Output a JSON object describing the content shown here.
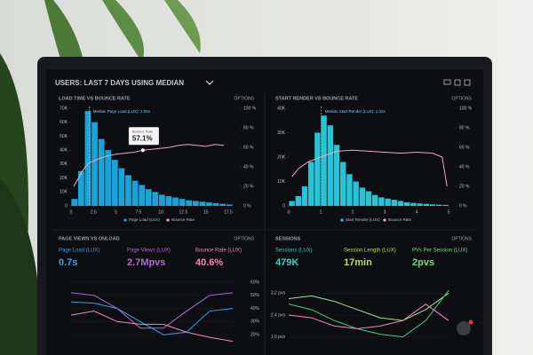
{
  "header": {
    "title": "USERS: LAST 7 DAYS USING MEDIAN"
  },
  "charts": [
    {
      "type": "histogram",
      "title": "LOAD TIME VS BOUNCE RATE",
      "options": "OPTIONS",
      "annotation": "Median Page Load (LUX): 2.05s",
      "median": 2.05,
      "bins": [
        0,
        0.75,
        1.5,
        2.25,
        3,
        3.75,
        4.5,
        5.25,
        6,
        6.75,
        7.5,
        8.25,
        9,
        9.75,
        10.5,
        11.25,
        12,
        12.75,
        13.5,
        14.25,
        15,
        15.75,
        16.5,
        17.25,
        18
      ],
      "counts": [
        5000,
        25000,
        68000,
        60000,
        48000,
        40000,
        33000,
        27000,
        22000,
        18000,
        15000,
        12000,
        10000,
        8000,
        7000,
        6000,
        5000,
        4000,
        3500,
        3000,
        2500,
        2000,
        1500,
        1000
      ],
      "color": "#1aa3d9",
      "line": {
        "color": "#e9a8c9",
        "x": [
          0.3,
          0.8,
          1.2,
          1.6,
          2,
          3,
          4,
          5,
          6,
          7,
          8,
          9,
          10,
          11,
          12,
          13,
          14,
          15,
          16,
          17
        ],
        "values": [
          20,
          28,
          35,
          40,
          44,
          48,
          51,
          53,
          54,
          55,
          57.1,
          58,
          59,
          60,
          62,
          63,
          62,
          61,
          63,
          62
        ]
      },
      "tooltip": {
        "label": "Bounce Rate",
        "x": 8,
        "value": 57.1,
        "value_label": "57.1%"
      },
      "legend": [
        "Page Load (LUX)",
        "Bounce Rate"
      ],
      "xlim": [
        0,
        18
      ],
      "xticks": [
        0,
        2.5,
        5,
        7.5,
        10,
        12.5,
        15,
        17.5
      ],
      "ylim": [
        0,
        70000
      ],
      "yticks": [
        {
          "value": 0,
          "label": "0"
        },
        {
          "value": 10000,
          "label": "10K"
        },
        {
          "value": 20000,
          "label": "20K"
        },
        {
          "value": 30000,
          "label": "30K"
        },
        {
          "value": 40000,
          "label": "40K"
        },
        {
          "value": 50000,
          "label": "50K"
        },
        {
          "value": 60000,
          "label": "60K"
        },
        {
          "value": 70000,
          "label": "70K"
        }
      ],
      "y2lim": [
        0,
        100
      ],
      "y2ticks": [
        {
          "value": 0,
          "label": "0 %"
        },
        {
          "value": 20,
          "label": "20 %"
        },
        {
          "value": 40,
          "label": "40 %"
        },
        {
          "value": 60,
          "label": "60 %"
        },
        {
          "value": 80,
          "label": "80 %"
        },
        {
          "value": 100,
          "label": "100 %"
        }
      ]
    },
    {
      "type": "histogram",
      "title": "START RENDER VS BOUNCE RATE",
      "options": "OPTIONS",
      "annotation": "Median Start Render (LUX): 1.02s",
      "median": 1.02,
      "bins": [
        0,
        0.2,
        0.4,
        0.6,
        0.8,
        1,
        1.2,
        1.4,
        1.6,
        1.8,
        2,
        2.2,
        2.4,
        2.6,
        2.8,
        3,
        3.2,
        3.4,
        3.6,
        3.8,
        4,
        4.2,
        4.4,
        4.6,
        4.8,
        5
      ],
      "counts": [
        2000,
        4000,
        8000,
        18000,
        30000,
        37000,
        33000,
        25000,
        18000,
        13000,
        10000,
        7500,
        6000,
        4500,
        3500,
        3000,
        2500,
        2000,
        1500,
        1200,
        1000,
        800,
        600,
        500,
        400
      ],
      "color": "#27c4d8",
      "line": {
        "color": "#e9a8c9",
        "x": [
          0.1,
          0.3,
          0.6,
          1,
          1.5,
          2,
          2.5,
          3,
          3.5,
          4,
          4.5,
          4.8,
          4.95
        ],
        "values": [
          30,
          38,
          45,
          50,
          56,
          57,
          56,
          55,
          54,
          55,
          54,
          50,
          20
        ]
      },
      "legend": [
        "Start Render (LUX)",
        "Bounce Rate"
      ],
      "xlim": [
        0,
        5
      ],
      "xticks": [
        0,
        1,
        2,
        3,
        4,
        5
      ],
      "ylim": [
        0,
        40000
      ],
      "yticks": [
        {
          "value": 0,
          "label": "0"
        },
        {
          "value": 10000,
          "label": "10K"
        },
        {
          "value": 20000,
          "label": "20K"
        },
        {
          "value": 30000,
          "label": "30K"
        },
        {
          "value": 40000,
          "label": "40K"
        }
      ],
      "y2lim": [
        0,
        100
      ],
      "y2ticks": [
        {
          "value": 0,
          "label": "0 %"
        },
        {
          "value": 20,
          "label": "20 %"
        },
        {
          "value": 40,
          "label": "40 %"
        },
        {
          "value": 60,
          "label": "60 %"
        },
        {
          "value": 80,
          "label": "80 %"
        },
        {
          "value": 100,
          "label": "100 %"
        }
      ]
    },
    {
      "type": "line",
      "title": "PAGE VIEWS VS ONLOAD",
      "options": "OPTIONS",
      "kpis": [
        {
          "label": "Page Load (LUX)",
          "value": "0.7s",
          "color": "#3aa0e8"
        },
        {
          "label": "Page Views (LUX)",
          "value": "2.7Mpvs",
          "color": "#b06ad0"
        },
        {
          "label": "Bounce Rate (LUX)",
          "value": "40.6%",
          "color": "#f08ab8"
        }
      ],
      "categories": [
        null,
        null,
        null,
        null,
        null,
        null,
        null,
        null
      ],
      "series": [
        {
          "color": "#3aa0e8",
          "values": [
            45,
            44,
            40,
            30,
            20,
            22,
            38,
            40
          ]
        },
        {
          "color": "#b06ad0",
          "values": [
            52,
            50,
            40,
            25,
            25,
            38,
            50,
            52
          ]
        },
        {
          "color": "#f08ab8",
          "values": [
            35,
            38,
            30,
            28,
            28,
            22,
            18,
            15
          ]
        }
      ],
      "ylim": [
        10,
        60
      ],
      "yticks": [
        {
          "value": 20,
          "label": "20%"
        },
        {
          "value": 30,
          "label": "30%"
        },
        {
          "value": 40,
          "label": "40%"
        },
        {
          "value": 50,
          "label": "50%"
        },
        {
          "value": 60,
          "label": "60%"
        }
      ]
    },
    {
      "type": "line",
      "title": "SESSIONS",
      "options": "OPTIONS",
      "kpis": [
        {
          "label": "Sessions (LUX)",
          "value": "479K",
          "color": "#3ad0c0"
        },
        {
          "label": "Session Length (LUX)",
          "value": "17min",
          "color": "#b8e04a"
        },
        {
          "label": "PVs Per Session (LUX)",
          "value": "2pvs",
          "color": "#6ee07a"
        }
      ],
      "categories": [
        null,
        null,
        null,
        null,
        null,
        null,
        null,
        null
      ],
      "series": [
        {
          "color": "#a8e0a0",
          "values": [
            3,
            3.1,
            2.9,
            2.6,
            2.3,
            2.2,
            2.6,
            3.2
          ]
        },
        {
          "color": "#4ad07a",
          "values": [
            2.8,
            2.6,
            2.2,
            1.9,
            1.7,
            1.6,
            2.2,
            3.3
          ]
        },
        {
          "color": "#f08ab8",
          "values": [
            2.4,
            2.3,
            2,
            1.9,
            2,
            2.2,
            2.8,
            2.2
          ]
        }
      ],
      "ylim": [
        1.2,
        3.6
      ],
      "yticks": [
        {
          "value": 1.6,
          "label": "1.6 pvs"
        },
        {
          "value": 2.4,
          "label": "2.4 pvs"
        },
        {
          "value": 3.2,
          "label": "3.2 pvs"
        }
      ]
    }
  ]
}
